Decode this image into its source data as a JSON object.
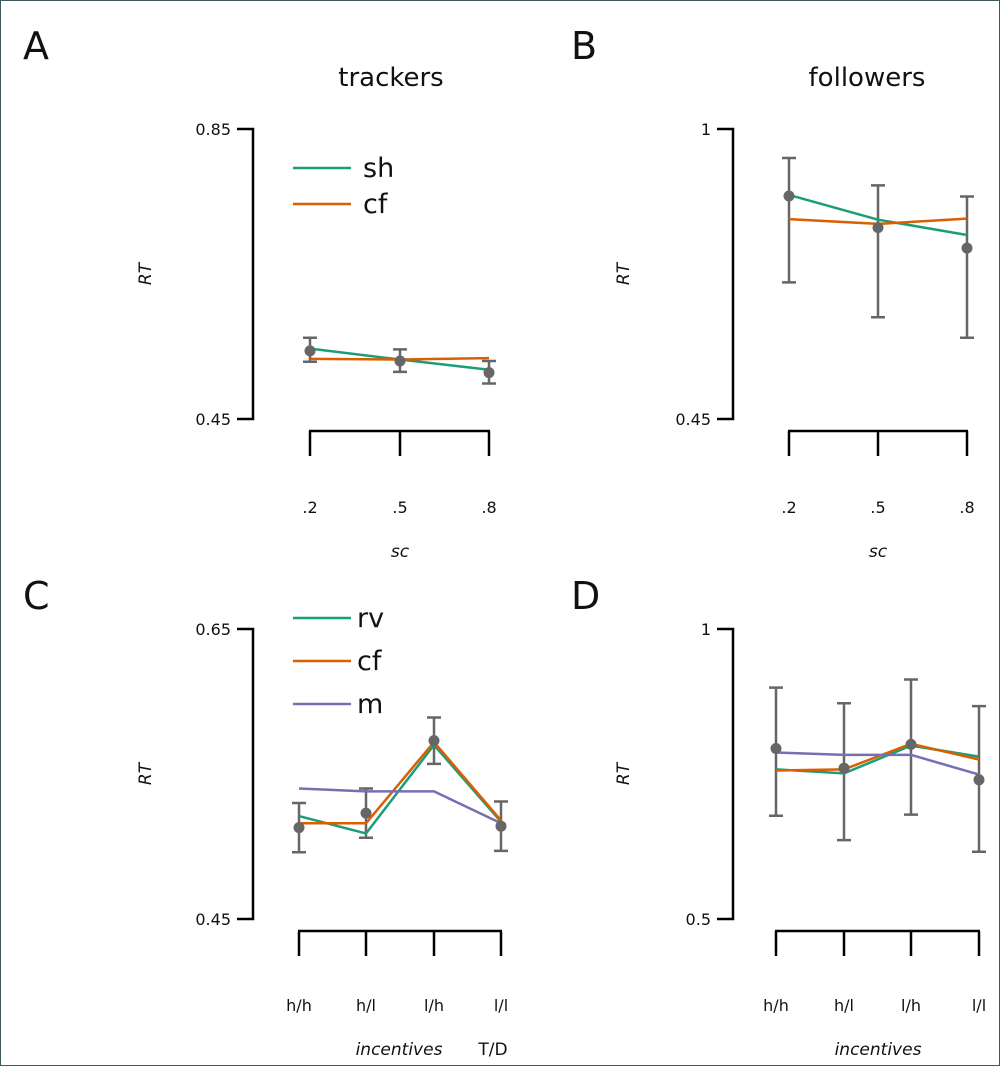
{
  "colors": {
    "green": "#1b9e77",
    "orange": "#d95f02",
    "purple": "#7570b3",
    "error_bar": "#666666"
  },
  "chart_data": [
    {
      "type": "line",
      "panel": "A",
      "title": "trackers",
      "ylabel": "RT",
      "xlabel": "sc",
      "ylim": [
        0.45,
        0.85
      ],
      "yticks": [
        "0.85",
        "0.45"
      ],
      "categories": [
        ".2",
        ".5",
        ".8"
      ],
      "legend": "top-left",
      "series": [
        {
          "name": "sh",
          "color": "green",
          "values": [
            0.547,
            0.532,
            0.518
          ]
        },
        {
          "name": "cf",
          "color": "orange",
          "values": [
            0.533,
            0.532,
            0.534
          ]
        }
      ],
      "points": [
        0.544,
        0.53,
        0.514
      ],
      "errors": [
        [
          0.562,
          0.529
        ],
        [
          0.546,
          0.515
        ],
        [
          0.53,
          0.499
        ]
      ]
    },
    {
      "type": "line",
      "panel": "B",
      "title": "followers",
      "ylabel": "RT",
      "xlabel": "sc",
      "ylim": [
        0.45,
        1.0
      ],
      "yticks": [
        "1",
        "0.45"
      ],
      "categories": [
        ".2",
        ".5",
        ".8"
      ],
      "series": [
        {
          "name": "",
          "color": "green",
          "values": [
            0.875,
            0.828,
            0.799
          ]
        },
        {
          "name": "",
          "color": "orange",
          "values": [
            0.829,
            0.82,
            0.83
          ]
        }
      ],
      "points": [
        0.873,
        0.813,
        0.774
      ],
      "errors": [
        [
          0.945,
          0.709
        ],
        [
          0.893,
          0.643
        ],
        [
          0.872,
          0.604
        ]
      ]
    },
    {
      "type": "line",
      "panel": "C",
      "ylabel": "RT",
      "xlabel": "incentives",
      "xlabel2": "T/D",
      "ylim": [
        0.45,
        0.65
      ],
      "yticks": [
        "0.65",
        "0.45"
      ],
      "categories": [
        "h/h",
        "h/l",
        "l/h",
        "l/l"
      ],
      "legend": "top-left",
      "series": [
        {
          "name": "rv",
          "color": "green",
          "values": [
            0.521,
            0.509,
            0.57,
            0.517
          ]
        },
        {
          "name": "cf",
          "color": "orange",
          "values": [
            0.516,
            0.516,
            0.572,
            0.518
          ]
        },
        {
          "name": "m",
          "color": "purple",
          "values": [
            0.54,
            0.538,
            0.538,
            0.516
          ]
        }
      ],
      "points": [
        0.513,
        0.523,
        0.573,
        0.514
      ],
      "errors": [
        [
          0.53,
          0.496
        ],
        [
          0.54,
          0.506
        ],
        [
          0.589,
          0.557
        ],
        [
          0.531,
          0.497
        ]
      ]
    },
    {
      "type": "line",
      "panel": "D",
      "ylabel": "RT",
      "xlabel": "incentives",
      "ylim": [
        0.5,
        1.0
      ],
      "yticks": [
        "1",
        "0.5"
      ],
      "categories": [
        "h/h",
        "h/l",
        "l/h",
        "l/l"
      ],
      "series": [
        {
          "name": "",
          "color": "green",
          "values": [
            0.758,
            0.751,
            0.799,
            0.78
          ]
        },
        {
          "name": "",
          "color": "orange",
          "values": [
            0.756,
            0.758,
            0.802,
            0.775
          ]
        },
        {
          "name": "",
          "color": "purple",
          "values": [
            0.787,
            0.783,
            0.783,
            0.749
          ]
        }
      ],
      "points": [
        0.794,
        0.76,
        0.801,
        0.74
      ],
      "errors": [
        [
          0.899,
          0.678
        ],
        [
          0.872,
          0.636
        ],
        [
          0.913,
          0.68
        ],
        [
          0.867,
          0.616
        ]
      ]
    }
  ]
}
